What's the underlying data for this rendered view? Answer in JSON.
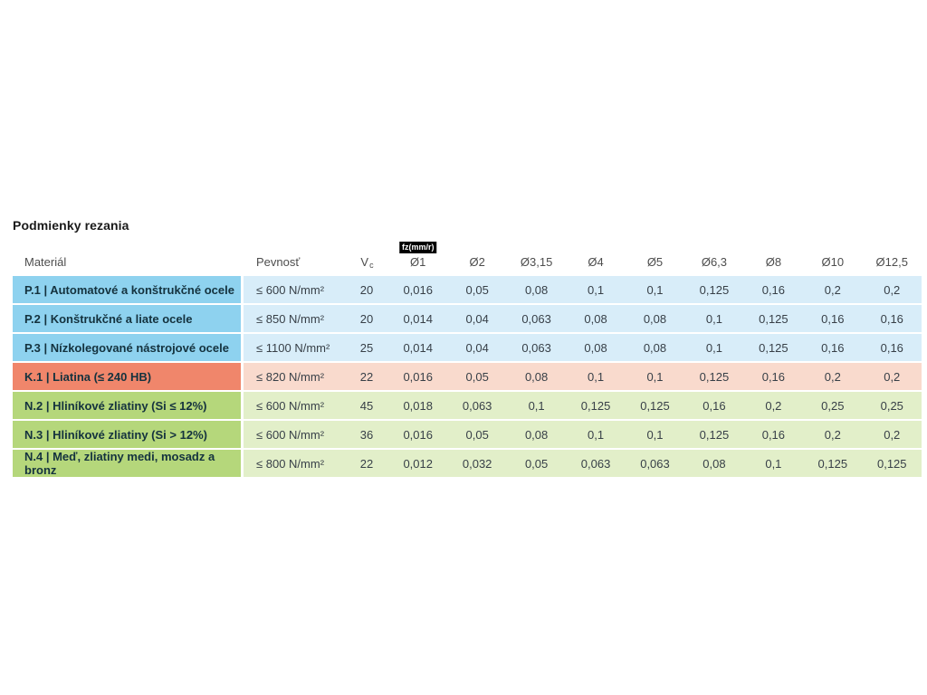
{
  "page": {
    "title": "Podmienky rezania"
  },
  "table": {
    "headers": {
      "material": "Materiál",
      "strength": "Pevnosť",
      "vc_main": "V",
      "vc_sub": "c",
      "fz_badge": "fz(mm/r)",
      "diameters": [
        "Ø1",
        "Ø2",
        "Ø3,15",
        "Ø4",
        "Ø5",
        "Ø6,3",
        "Ø8",
        "Ø10",
        "Ø12,5"
      ]
    },
    "rows": [
      {
        "theme": "blue",
        "material": "P.1 | Automatové a konštrukčné ocele",
        "strength": "≤ 600 N/mm²",
        "vc": "20",
        "fz": [
          "0,016",
          "0,05",
          "0,08",
          "0,1",
          "0,1",
          "0,125",
          "0,16",
          "0,2",
          "0,2"
        ]
      },
      {
        "theme": "blue",
        "material": "P.2 | Konštrukčné a liate ocele",
        "strength": "≤ 850 N/mm²",
        "vc": "20",
        "fz": [
          "0,014",
          "0,04",
          "0,063",
          "0,08",
          "0,08",
          "0,1",
          "0,125",
          "0,16",
          "0,16"
        ]
      },
      {
        "theme": "blue",
        "material": "P.3 | Nízkolegované nástrojové ocele",
        "strength": "≤ 1100 N/mm²",
        "vc": "25",
        "fz": [
          "0,014",
          "0,04",
          "0,063",
          "0,08",
          "0,08",
          "0,1",
          "0,125",
          "0,16",
          "0,16"
        ]
      },
      {
        "theme": "salmon",
        "material": "K.1 | Liatina (≤ 240 HB)",
        "strength": "≤ 820 N/mm²",
        "vc": "22",
        "fz": [
          "0,016",
          "0,05",
          "0,08",
          "0,1",
          "0,1",
          "0,125",
          "0,16",
          "0,2",
          "0,2"
        ]
      },
      {
        "theme": "green",
        "material": "N.2 | Hliníkové zliatiny (Si ≤ 12%)",
        "strength": "≤ 600 N/mm²",
        "vc": "45",
        "fz": [
          "0,018",
          "0,063",
          "0,1",
          "0,125",
          "0,125",
          "0,16",
          "0,2",
          "0,25",
          "0,25"
        ]
      },
      {
        "theme": "green",
        "material": "N.3 | Hliníkové zliatiny (Si > 12%)",
        "strength": "≤ 600 N/mm²",
        "vc": "36",
        "fz": [
          "0,016",
          "0,05",
          "0,08",
          "0,1",
          "0,1",
          "0,125",
          "0,16",
          "0,2",
          "0,2"
        ]
      },
      {
        "theme": "green",
        "material": "N.4 | Meď, zliatiny medi, mosadz a bronz",
        "strength": "≤ 800 N/mm²",
        "vc": "22",
        "fz": [
          "0,012",
          "0,032",
          "0,05",
          "0,063",
          "0,063",
          "0,08",
          "0,1",
          "0,125",
          "0,125"
        ]
      }
    ]
  },
  "colors": {
    "blue_strong": "#8ed2ef",
    "blue_light": "#d8edf9",
    "salmon_strong": "#f0866b",
    "salmon_light": "#f9dacd",
    "green_strong": "#b5d77b",
    "green_light": "#e2efc9",
    "material_text": "#14323e",
    "value_text": "#373f47",
    "header_text": "#4d4d4d",
    "title_text": "#1a1a1a",
    "badge_bg": "#000000",
    "badge_text": "#ffffff"
  }
}
